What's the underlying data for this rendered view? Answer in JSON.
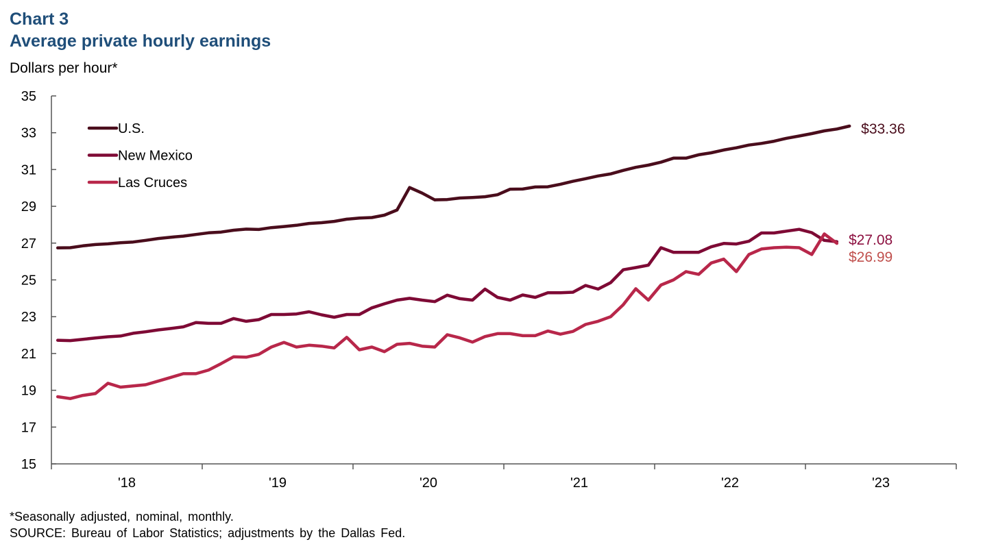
{
  "header": {
    "chart_number": "Chart 3",
    "title": "Average private hourly earnings",
    "ylabel": "Dollars per hour*"
  },
  "footer": {
    "note": "*Seasonally adjusted, nominal, monthly.",
    "source": "SOURCE: Bureau of Labor Statistics; adjustments by the Dallas Fed."
  },
  "chart_data": {
    "type": "line",
    "title": "Average private hourly earnings",
    "ylabel": "Dollars per hour*",
    "xlabel": "",
    "ylim": [
      15,
      35
    ],
    "yticks": [
      15,
      17,
      19,
      21,
      23,
      25,
      27,
      29,
      31,
      33,
      35
    ],
    "xticks": [
      "'18",
      "'19",
      "'20",
      "'21",
      "'22",
      "'23"
    ],
    "x_start": "Jan 2018",
    "frequency": "monthly",
    "legend_position": "top-left",
    "series": [
      {
        "name": "U.S.",
        "color": "#4a0d1c",
        "end_label": "$33.36",
        "label_color": "#4a0d1c",
        "values": [
          26.74,
          26.75,
          26.85,
          26.92,
          26.96,
          27.02,
          27.06,
          27.15,
          27.25,
          27.32,
          27.38,
          27.47,
          27.56,
          27.6,
          27.7,
          27.76,
          27.74,
          27.84,
          27.9,
          27.97,
          28.07,
          28.11,
          28.18,
          28.3,
          28.36,
          28.39,
          28.52,
          28.8,
          30.02,
          29.72,
          29.35,
          29.37,
          29.45,
          29.48,
          29.52,
          29.63,
          29.93,
          29.94,
          30.05,
          30.06,
          30.2,
          30.36,
          30.5,
          30.65,
          30.76,
          30.95,
          31.12,
          31.24,
          31.4,
          31.62,
          31.62,
          31.8,
          31.91,
          32.06,
          32.18,
          32.33,
          32.42,
          32.54,
          32.7,
          32.82,
          32.95,
          33.1,
          33.2,
          33.36
        ]
      },
      {
        "name": "New Mexico",
        "color": "#7e0a35",
        "end_label": "$27.08",
        "label_color": "#8c1040",
        "values": [
          21.72,
          21.7,
          21.77,
          21.84,
          21.91,
          21.95,
          22.1,
          22.18,
          22.28,
          22.36,
          22.45,
          22.68,
          22.64,
          22.64,
          22.9,
          22.75,
          22.84,
          23.12,
          23.12,
          23.15,
          23.27,
          23.1,
          22.97,
          23.12,
          23.12,
          23.48,
          23.7,
          23.9,
          24.0,
          23.9,
          23.82,
          24.17,
          23.98,
          23.9,
          24.5,
          24.05,
          23.9,
          24.18,
          24.05,
          24.3,
          24.3,
          24.33,
          24.7,
          24.5,
          24.85,
          25.55,
          25.67,
          25.8,
          26.75,
          26.5,
          26.5,
          26.5,
          26.8,
          26.98,
          26.95,
          27.1,
          27.55,
          27.55,
          27.65,
          27.75,
          27.57,
          27.15,
          27.08
        ]
      },
      {
        "name": "Las Cruces",
        "color": "#b8274a",
        "end_label": "$26.99",
        "label_color": "#c0504d",
        "values": [
          18.65,
          18.55,
          18.72,
          18.82,
          19.38,
          19.17,
          19.24,
          19.3,
          19.5,
          19.7,
          19.9,
          19.9,
          20.1,
          20.45,
          20.82,
          20.8,
          20.95,
          21.35,
          21.6,
          21.35,
          21.45,
          21.4,
          21.3,
          21.88,
          21.2,
          21.35,
          21.1,
          21.5,
          21.55,
          21.4,
          21.35,
          22.02,
          21.85,
          21.62,
          21.92,
          22.08,
          22.08,
          21.97,
          21.97,
          22.22,
          22.05,
          22.2,
          22.58,
          22.75,
          23.0,
          23.65,
          24.52,
          23.9,
          24.72,
          25.0,
          25.45,
          25.3,
          25.92,
          26.13,
          25.45,
          26.38,
          26.68,
          26.75,
          26.78,
          26.75,
          26.38,
          27.5,
          26.99
        ]
      }
    ]
  }
}
